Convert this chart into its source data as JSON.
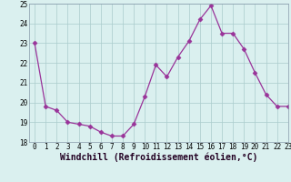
{
  "x": [
    0,
    1,
    2,
    3,
    4,
    5,
    6,
    7,
    8,
    9,
    10,
    11,
    12,
    13,
    14,
    15,
    16,
    17,
    18,
    19,
    20,
    21,
    22,
    23
  ],
  "y": [
    23.0,
    19.8,
    19.6,
    19.0,
    18.9,
    18.8,
    18.5,
    18.3,
    18.3,
    18.9,
    20.3,
    21.9,
    21.3,
    22.3,
    23.1,
    24.2,
    24.9,
    23.5,
    23.5,
    22.7,
    21.5,
    20.4,
    19.8,
    19.8
  ],
  "line_color": "#993399",
  "marker": "D",
  "marker_size": 2.5,
  "bg_color": "#daf0ef",
  "grid_color": "#aacccc",
  "xlabel": "Windchill (Refroidissement éolien,°C)",
  "xlabel_fontsize": 7,
  "ylim": [
    18,
    25
  ],
  "xlim": [
    -0.5,
    23
  ],
  "yticks": [
    18,
    19,
    20,
    21,
    22,
    23,
    24,
    25
  ],
  "xticks": [
    0,
    1,
    2,
    3,
    4,
    5,
    6,
    7,
    8,
    9,
    10,
    11,
    12,
    13,
    14,
    15,
    16,
    17,
    18,
    19,
    20,
    21,
    22,
    23
  ],
  "tick_fontsize": 5.5,
  "title": ""
}
